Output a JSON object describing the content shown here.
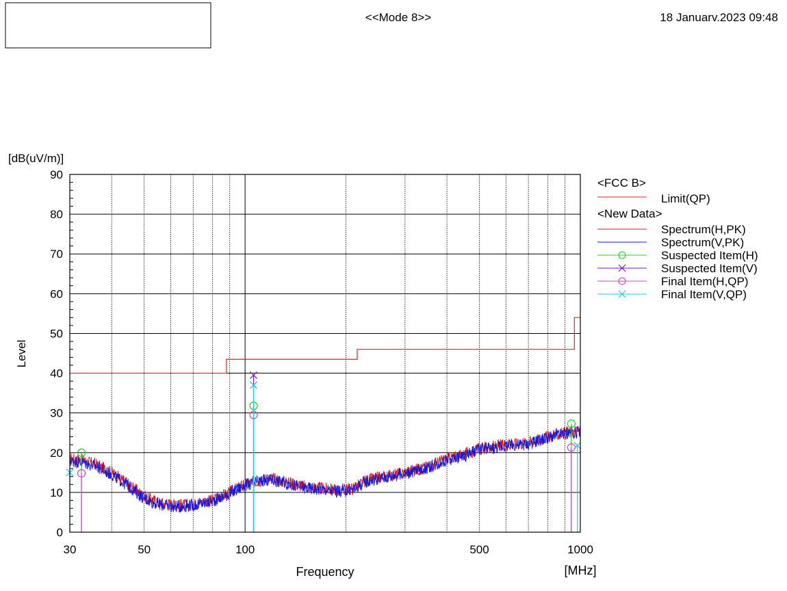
{
  "header": {
    "mode": "<<Mode 8>>",
    "timestamp": "18 Januarv.2023 09:48"
  },
  "chart_data": {
    "type": "line",
    "title": "",
    "xlabel": "Frequency",
    "x_unit": "[MHz]",
    "ylabel": "Level",
    "y_unit": "[dB(uV/m)]",
    "xscale": "log",
    "xlim": [
      30,
      1000
    ],
    "ylim": [
      0,
      90
    ],
    "grid": true,
    "x_ticks": [
      30,
      50,
      100,
      500,
      1000
    ],
    "y_ticks": [
      0,
      10,
      20,
      30,
      40,
      50,
      60,
      70,
      80,
      90
    ],
    "legend_position": "right",
    "legend": {
      "group1": "<FCC B>",
      "limit_label": "Limit(QP)",
      "group2": "<New Data>",
      "items": [
        "Spectrum(H,PK)",
        "Spectrum(V,PK)",
        "Suspected Item(H)",
        "Suspected Item(V)",
        "Final Item(H,QP)",
        "Final Item(V,QP)"
      ]
    },
    "limit": {
      "name": "Limit(QP)",
      "color": "#e02020",
      "steps": [
        [
          30,
          88,
          40.0
        ],
        [
          88,
          216,
          43.5
        ],
        [
          216,
          960,
          46.0
        ],
        [
          960,
          1000,
          54.0
        ]
      ]
    },
    "series": [
      {
        "name": "Spectrum(H,PK)",
        "color": "#e01818",
        "x": [
          30,
          33,
          36,
          40,
          45,
          50,
          55,
          60,
          65,
          70,
          80,
          90,
          100,
          105,
          110,
          120,
          130,
          150,
          170,
          190,
          210,
          230,
          260,
          300,
          350,
          400,
          450,
          500,
          550,
          600,
          700,
          800,
          900,
          1000
        ],
        "y": [
          18.5,
          18.0,
          17.0,
          15.0,
          12.0,
          9.0,
          7.5,
          7.0,
          6.8,
          7.0,
          8.0,
          10.0,
          12.0,
          12.5,
          13.0,
          13.5,
          12.8,
          11.5,
          11.0,
          10.5,
          11.0,
          13.0,
          14.0,
          15.0,
          16.5,
          18.5,
          19.5,
          21.0,
          21.5,
          22.0,
          22.5,
          24.0,
          25.0,
          25.5
        ]
      },
      {
        "name": "Spectrum(V,PK)",
        "color": "#1018e0",
        "x": [
          30,
          33,
          36,
          40,
          45,
          50,
          55,
          60,
          65,
          70,
          80,
          90,
          100,
          105,
          110,
          120,
          130,
          150,
          170,
          190,
          210,
          230,
          260,
          300,
          350,
          400,
          450,
          500,
          550,
          600,
          700,
          800,
          900,
          1000
        ],
        "y": [
          18.0,
          17.5,
          16.5,
          14.5,
          11.5,
          8.5,
          7.0,
          6.5,
          6.5,
          6.8,
          7.8,
          9.8,
          11.8,
          12.2,
          12.8,
          13.2,
          12.5,
          11.2,
          10.8,
          10.2,
          10.8,
          12.8,
          13.8,
          14.8,
          16.2,
          18.2,
          19.2,
          20.8,
          21.2,
          21.8,
          22.2,
          23.8,
          24.8,
          25.2
        ]
      }
    ],
    "markers": [
      {
        "name": "Suspected Item(H)",
        "symbol": "circle",
        "color": "#20d020",
        "points": [
          [
            32.5,
            20.0
          ],
          [
            106.0,
            31.8
          ],
          [
            940.0,
            27.3
          ]
        ]
      },
      {
        "name": "Suspected Item(V)",
        "symbol": "x",
        "color": "#7a18d8",
        "points": [
          [
            106.0,
            39.5
          ]
        ]
      },
      {
        "name": "Final Item(H,QP)",
        "symbol": "circle",
        "color": "#d040d0",
        "points": [
          [
            32.5,
            14.8
          ],
          [
            106.0,
            29.5
          ],
          [
            940.0,
            21.3
          ]
        ]
      },
      {
        "name": "Final Item(V,QP)",
        "symbol": "x",
        "color": "#20c8e0",
        "points": [
          [
            30.0,
            15.0
          ],
          [
            106.0,
            37.0
          ],
          [
            980.0,
            21.8
          ]
        ]
      }
    ]
  }
}
